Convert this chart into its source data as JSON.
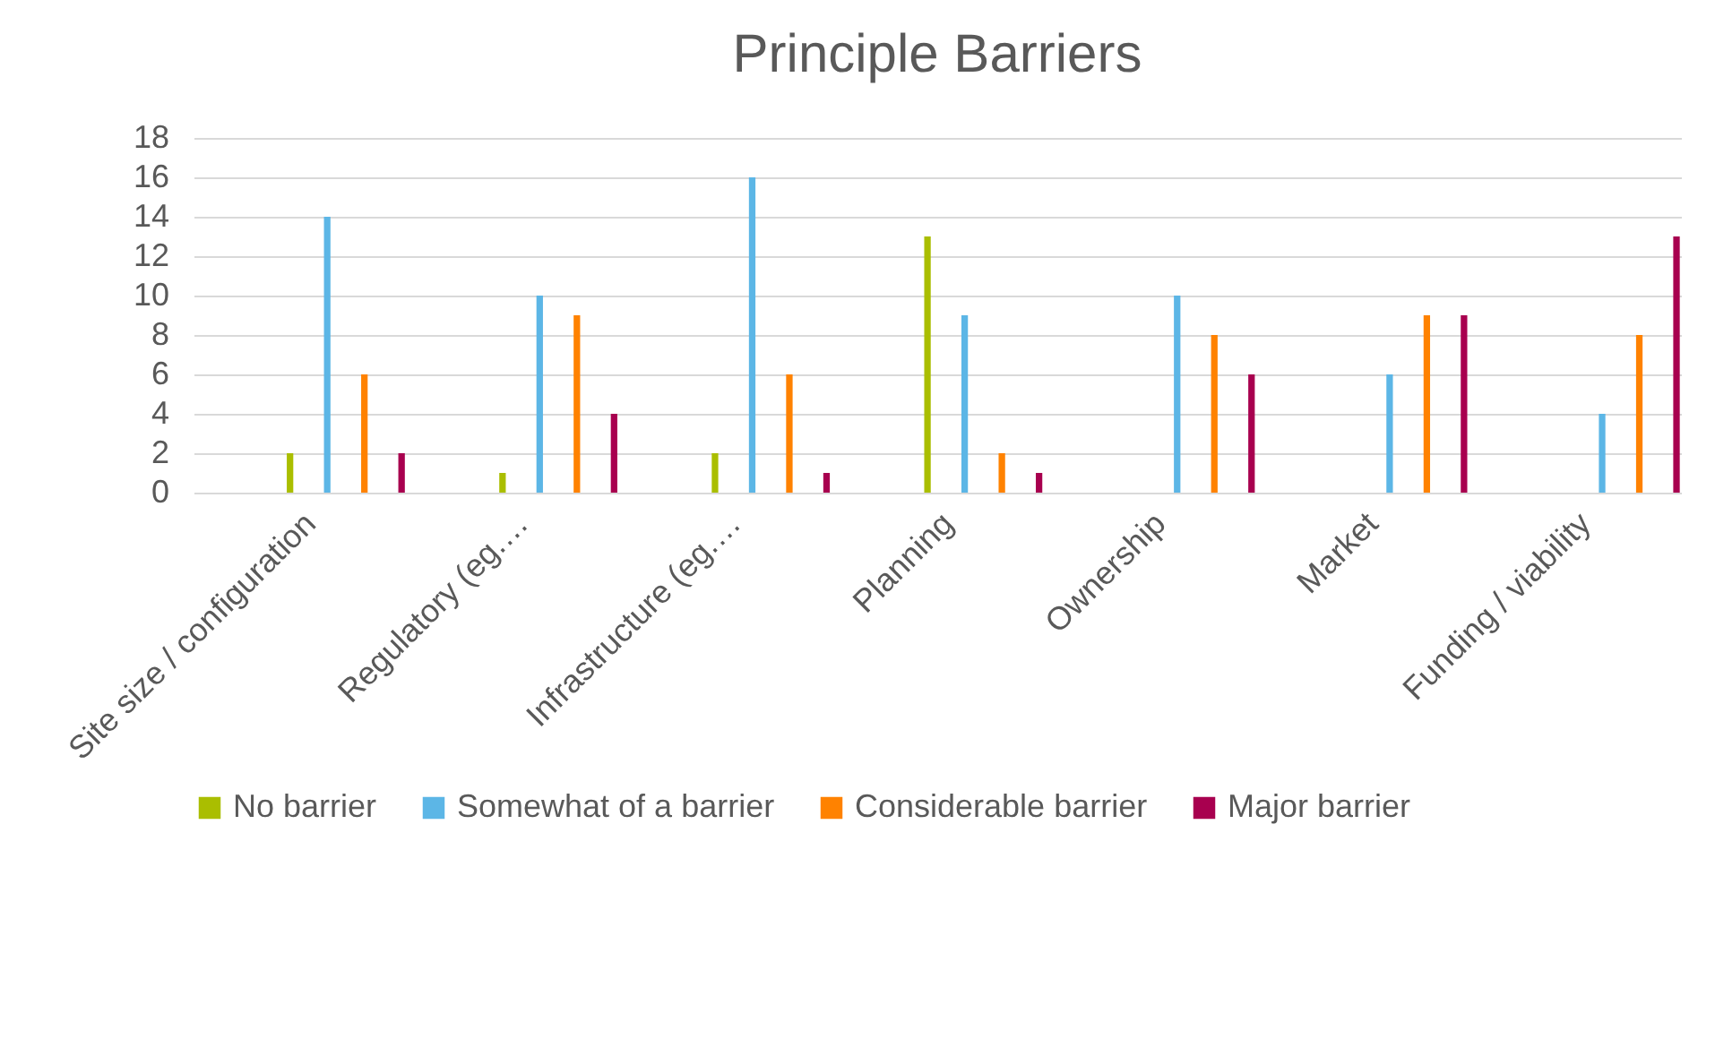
{
  "chart_data": {
    "type": "bar",
    "title": "Principle Barriers",
    "categories": [
      "Site size / configuration",
      "Regulatory (eg.…",
      "Infrastructure (eg.…",
      "Planning",
      "Ownership",
      "Market",
      "Funding / viability"
    ],
    "series": [
      {
        "name": "No barrier",
        "color": "#aabe00",
        "values": [
          2,
          1,
          2,
          13,
          0,
          0,
          0
        ]
      },
      {
        "name": "Somewhat of a barrier",
        "color": "#5cb6e6",
        "values": [
          14,
          10,
          16,
          9,
          10,
          6,
          4
        ]
      },
      {
        "name": "Considerable barrier",
        "color": "#ff8200",
        "values": [
          6,
          9,
          6,
          2,
          8,
          9,
          8
        ]
      },
      {
        "name": "Major barrier",
        "color": "#a8004f",
        "values": [
          2,
          4,
          1,
          1,
          6,
          9,
          13
        ]
      }
    ],
    "ylim": [
      0,
      18
    ],
    "yticks": [
      0,
      2,
      4,
      6,
      8,
      10,
      12,
      14,
      16,
      18
    ],
    "grid": "y",
    "legend": "bottom"
  }
}
